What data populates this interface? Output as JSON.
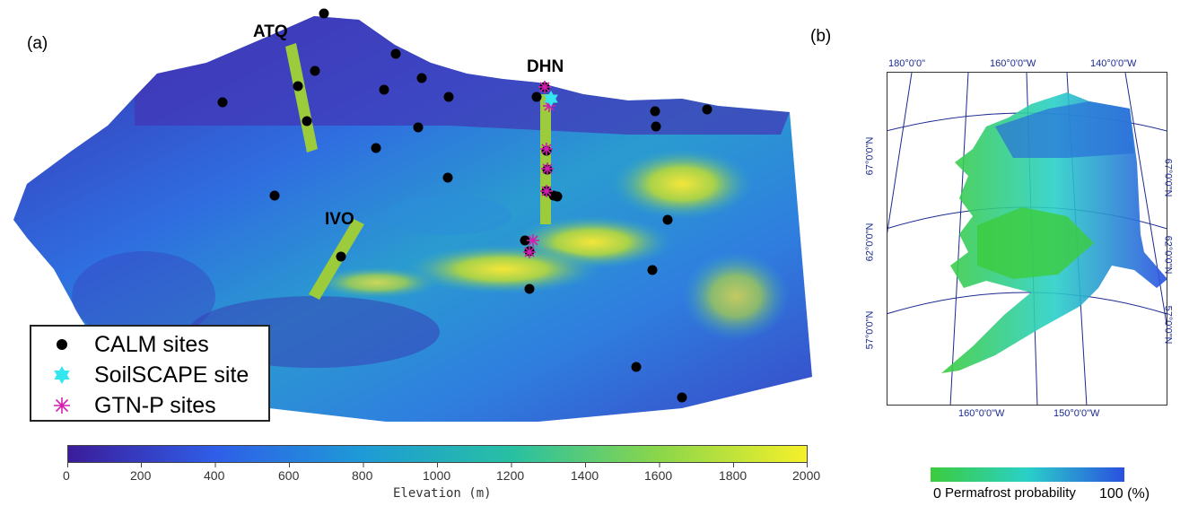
{
  "panel_a": {
    "label": "(a)",
    "transects": [
      {
        "id": "atq",
        "label": "ATQ"
      },
      {
        "id": "ivo",
        "label": "IVO"
      },
      {
        "id": "dhn",
        "label": "DHN"
      }
    ],
    "legend": {
      "calm": "CALM sites",
      "soilscape": "SoilSCAPE site",
      "gtnp": "GTN-P sites"
    },
    "colorbar": {
      "label": "Elevation (m)",
      "ticks": [
        "0",
        "200",
        "400",
        "600",
        "800",
        "1000",
        "1200",
        "1400",
        "1600",
        "1800",
        "2000"
      ],
      "colors": [
        "#3b1c9a",
        "#2f5ee8",
        "#1e9bd6",
        "#27c0a3",
        "#8bd64a",
        "#f5f02a"
      ]
    }
  },
  "panel_b": {
    "label": "(b)",
    "lon_labels_top": [
      "180°0'0\"",
      "160°0'0\"W",
      "140°0'0\"W"
    ],
    "lon_labels_bottom": [
      "160°0'0\"W",
      "150°0'0\"W"
    ],
    "lat_labels_left": [
      "67°0'0\"N",
      "62°0'0\"N",
      "57°0'0\"N"
    ],
    "lat_labels_right": [
      "67°0'0\"N",
      "62°0'0\"N",
      "57°0'0\"N"
    ],
    "colorbar": {
      "min_label": "0",
      "max_label": "100 (%)",
      "title": "Permafrost probability",
      "colors": [
        "#3ccc3c",
        "#2ad0c8",
        "#2a4fe0"
      ]
    }
  },
  "colors": {
    "calm": "#000000",
    "soilscape": "#33e6f0",
    "gtnp": "#d21fb0",
    "transect": "#9ccb3c",
    "graticule": "#1a2a8f"
  }
}
